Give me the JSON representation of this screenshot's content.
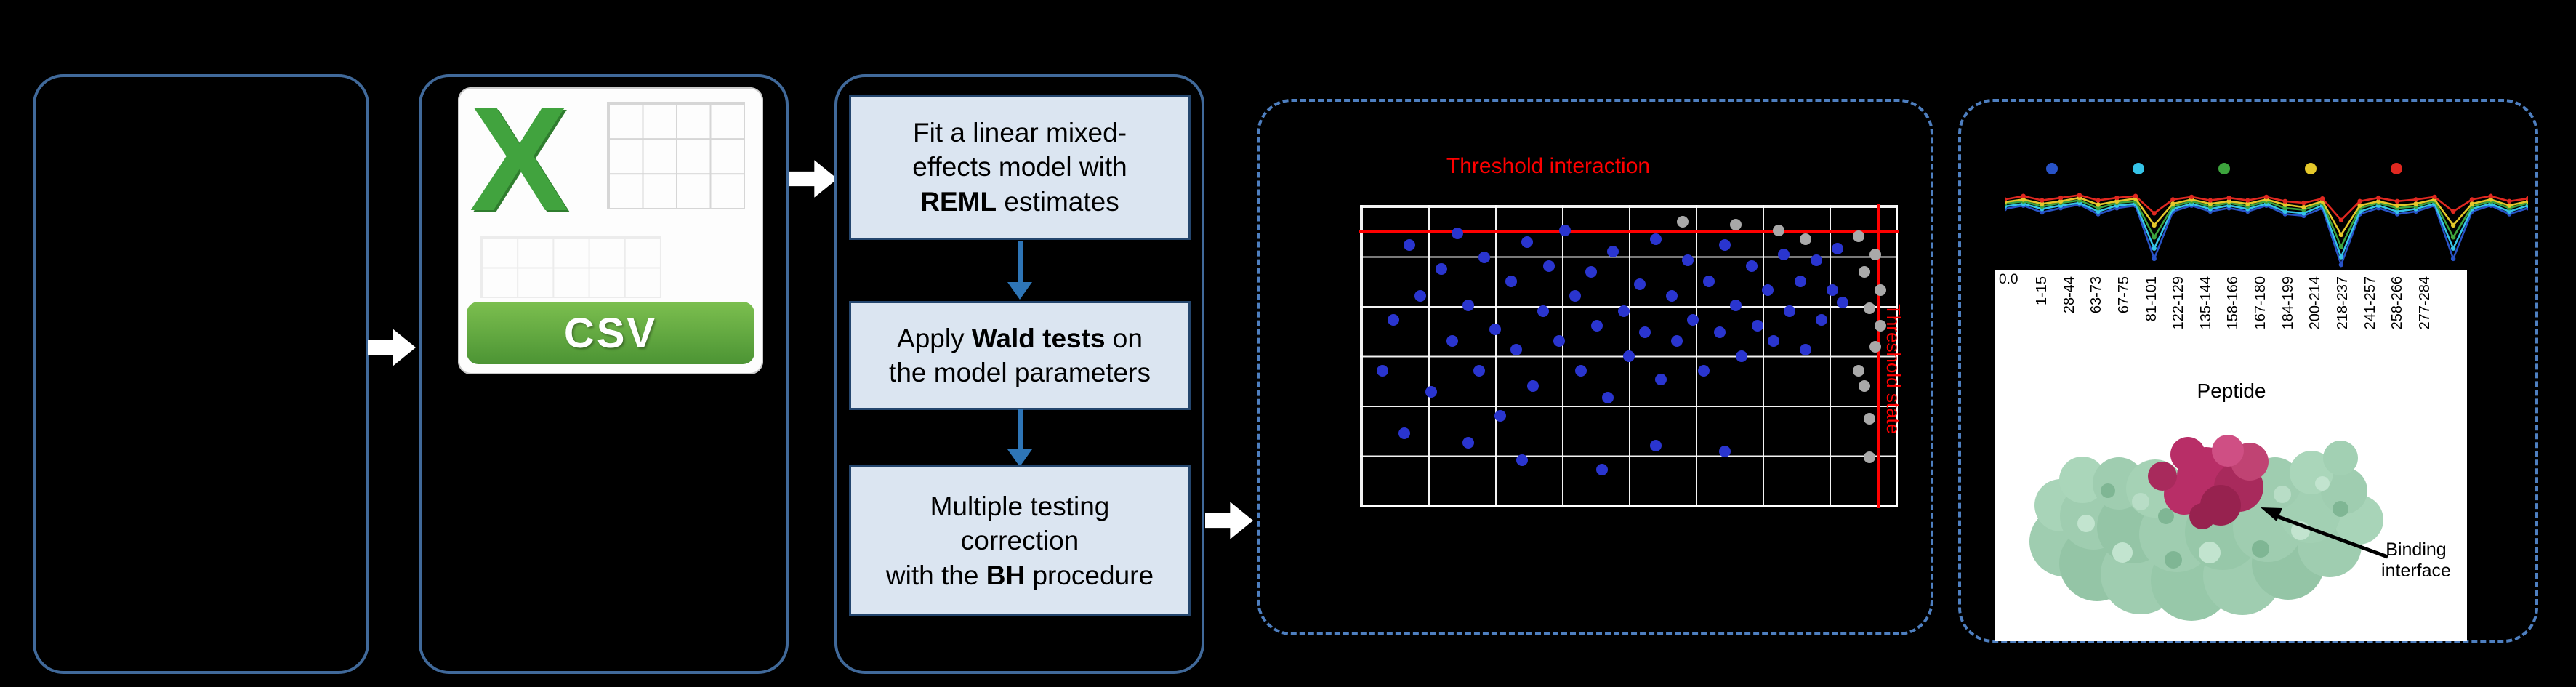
{
  "csv_icon": {
    "letter": "X",
    "label": "CSV"
  },
  "pipeline": {
    "boxes": [
      {
        "name": "step-1",
        "lines": [
          [
            {
              "t": "Fit a linear mixed-"
            }
          ],
          [
            {
              "t": "effects model with"
            }
          ],
          [
            {
              "t": "REML",
              "b": true
            },
            {
              "t": " estimates"
            }
          ]
        ]
      },
      {
        "name": "step-2",
        "lines": [
          [
            {
              "t": "Apply "
            },
            {
              "t": "Wald tests",
              "b": true
            },
            {
              "t": " on"
            }
          ],
          [
            {
              "t": "the model parameters"
            }
          ]
        ]
      },
      {
        "name": "step-3",
        "lines": [
          [
            {
              "t": "Multiple testing"
            }
          ],
          [
            {
              "t": "correction"
            }
          ],
          [
            {
              "t": "with the "
            },
            {
              "t": "BH",
              "b": true
            },
            {
              "t": " procedure"
            }
          ]
        ]
      }
    ]
  },
  "scatter": {
    "type": "scatter",
    "title": "Threshold interaction",
    "side_label": "Threshold state",
    "h_threshold_pct": 8,
    "v_threshold_pct": 96.5,
    "point_colors": {
      "significant": "#2a35cf",
      "censored": "#a9a9a9"
    },
    "blue_points": [
      [
        4,
        55
      ],
      [
        6,
        38
      ],
      [
        9,
        13
      ],
      [
        11,
        30
      ],
      [
        13,
        62
      ],
      [
        15,
        21
      ],
      [
        17,
        45
      ],
      [
        18,
        9
      ],
      [
        20,
        33
      ],
      [
        22,
        55
      ],
      [
        23,
        17
      ],
      [
        25,
        41
      ],
      [
        26,
        70
      ],
      [
        28,
        25
      ],
      [
        29,
        48
      ],
      [
        31,
        12
      ],
      [
        32,
        60
      ],
      [
        34,
        35
      ],
      [
        35,
        20
      ],
      [
        37,
        45
      ],
      [
        38,
        8
      ],
      [
        40,
        30
      ],
      [
        41,
        55
      ],
      [
        43,
        22
      ],
      [
        44,
        40
      ],
      [
        46,
        64
      ],
      [
        47,
        15
      ],
      [
        49,
        35
      ],
      [
        50,
        50
      ],
      [
        52,
        26
      ],
      [
        53,
        42
      ],
      [
        55,
        11
      ],
      [
        56,
        58
      ],
      [
        58,
        30
      ],
      [
        59,
        45
      ],
      [
        61,
        18
      ],
      [
        62,
        38
      ],
      [
        64,
        55
      ],
      [
        65,
        25
      ],
      [
        67,
        42
      ],
      [
        68,
        13
      ],
      [
        70,
        33
      ],
      [
        71,
        50
      ],
      [
        73,
        20
      ],
      [
        74,
        40
      ],
      [
        76,
        28
      ],
      [
        77,
        45
      ],
      [
        79,
        16
      ],
      [
        80,
        35
      ],
      [
        82,
        25
      ],
      [
        83,
        48
      ],
      [
        85,
        18
      ],
      [
        86,
        38
      ],
      [
        88,
        28
      ],
      [
        89,
        14
      ],
      [
        90,
        32
      ],
      [
        8,
        76
      ],
      [
        20,
        79
      ],
      [
        30,
        85
      ],
      [
        45,
        88
      ],
      [
        55,
        80
      ],
      [
        68,
        82
      ]
    ],
    "gray_points": [
      [
        93,
        10
      ],
      [
        94,
        22
      ],
      [
        95,
        34
      ],
      [
        96,
        47
      ],
      [
        94,
        60
      ],
      [
        95,
        71
      ],
      [
        96,
        16
      ],
      [
        97,
        28
      ],
      [
        95,
        84
      ],
      [
        93,
        55
      ],
      [
        78,
        8
      ],
      [
        83,
        11
      ],
      [
        60,
        5
      ],
      [
        70,
        6
      ],
      [
        97,
        40
      ]
    ]
  },
  "uptake": {
    "type": "line",
    "y_tick": "0.0",
    "legend_colors": [
      "#2853c8",
      "#35c4e8",
      "#3da43d",
      "#e5c82a",
      "#e02820"
    ],
    "series": [
      {
        "name": "blue",
        "color": "#2853c8",
        "values": [
          70,
          74,
          66,
          71,
          75,
          64,
          71,
          74,
          12,
          67,
          74,
          67,
          71,
          67,
          74,
          64,
          62,
          71,
          5,
          64,
          71,
          64,
          67,
          74,
          12,
          67,
          74,
          64,
          71
        ]
      },
      {
        "name": "cyan",
        "color": "#35c4e8",
        "values": [
          73,
          76,
          70,
          74,
          77,
          67,
          74,
          76,
          24,
          70,
          76,
          70,
          74,
          70,
          76,
          67,
          65,
          74,
          14,
          67,
          74,
          67,
          70,
          76,
          24,
          70,
          76,
          67,
          74
        ]
      },
      {
        "name": "green",
        "color": "#3da43d",
        "values": [
          76,
          79,
          73,
          77,
          80,
          71,
          77,
          79,
          37,
          73,
          79,
          73,
          77,
          73,
          79,
          71,
          69,
          77,
          26,
          71,
          77,
          71,
          73,
          79,
          37,
          73,
          79,
          71,
          77
        ]
      },
      {
        "name": "yellow",
        "color": "#e5c82a",
        "values": [
          78,
          81,
          76,
          79,
          83,
          75,
          79,
          82,
          51,
          76,
          81,
          76,
          79,
          76,
          81,
          75,
          72,
          79,
          40,
          74,
          79,
          74,
          76,
          81,
          51,
          76,
          81,
          74,
          79
        ]
      },
      {
        "name": "red",
        "color": "#e02820",
        "values": [
          81,
          85,
          80,
          83,
          86,
          80,
          83,
          85,
          65,
          81,
          84,
          80,
          83,
          80,
          84,
          79,
          77,
          82,
          57,
          79,
          83,
          79,
          81,
          84,
          67,
          81,
          85,
          79,
          82
        ]
      }
    ]
  },
  "peptide_axis": {
    "title": "Peptide",
    "labels": [
      "1-15",
      "28-44",
      "63-73",
      "67-75",
      "81-101",
      "122-129",
      "135-144",
      "158-166",
      "167-180",
      "184-199",
      "200-214",
      "218-237",
      "241-257",
      "258-266",
      "277-284"
    ]
  },
  "protein": {
    "binding_label": "Binding interface"
  }
}
